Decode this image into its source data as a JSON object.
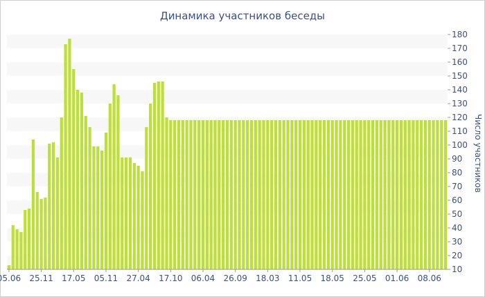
{
  "chart_data": {
    "type": "bar",
    "title": "Динамика участников беседы",
    "xlabel": "",
    "ylabel": "Число участников",
    "y_axis_position": "right",
    "ylim": [
      10,
      180
    ],
    "y_ticks": [
      10,
      20,
      30,
      40,
      50,
      60,
      70,
      80,
      90,
      100,
      110,
      120,
      130,
      140,
      150,
      160,
      170,
      180
    ],
    "x_tick_labels": [
      "05.06",
      "25.11",
      "17.05",
      "05.11",
      "27.04",
      "17.10",
      "06.04",
      "26.09",
      "18.03",
      "11.05",
      "18.05",
      "25.05",
      "01.06",
      "08.06"
    ],
    "x_tick_bar_index": [
      0,
      8,
      16,
      24,
      32,
      40,
      48,
      56,
      64,
      72,
      80,
      88,
      96,
      104
    ],
    "grid": "alternating horizontal bands",
    "legend": "none",
    "colors": {
      "bar": "#bde038",
      "band": "#f7f7f7",
      "text": "#3a4f8a",
      "axis": "#999999"
    },
    "values": [
      13,
      42,
      39,
      37,
      53,
      54,
      104,
      66,
      61,
      62,
      101,
      102,
      91,
      120,
      173,
      177,
      155,
      140,
      138,
      121,
      113,
      99,
      99,
      96,
      109,
      130,
      144,
      136,
      91,
      91,
      91,
      87,
      85,
      81,
      113,
      130,
      145,
      146,
      146,
      120,
      118,
      118,
      118,
      118,
      118,
      118,
      118,
      118,
      118,
      118,
      118,
      118,
      118,
      118,
      118,
      118,
      118,
      118,
      118,
      118,
      118,
      118,
      118,
      118,
      118,
      118,
      118,
      118,
      118,
      118,
      118,
      118,
      118,
      118,
      118,
      118,
      118,
      118,
      118,
      118,
      118,
      118,
      118,
      118,
      118,
      118,
      118,
      118,
      118,
      118,
      118,
      118,
      118,
      118,
      118,
      118,
      118,
      118,
      118,
      118,
      118,
      118,
      118,
      118,
      118,
      118,
      118,
      118,
      118
    ]
  }
}
